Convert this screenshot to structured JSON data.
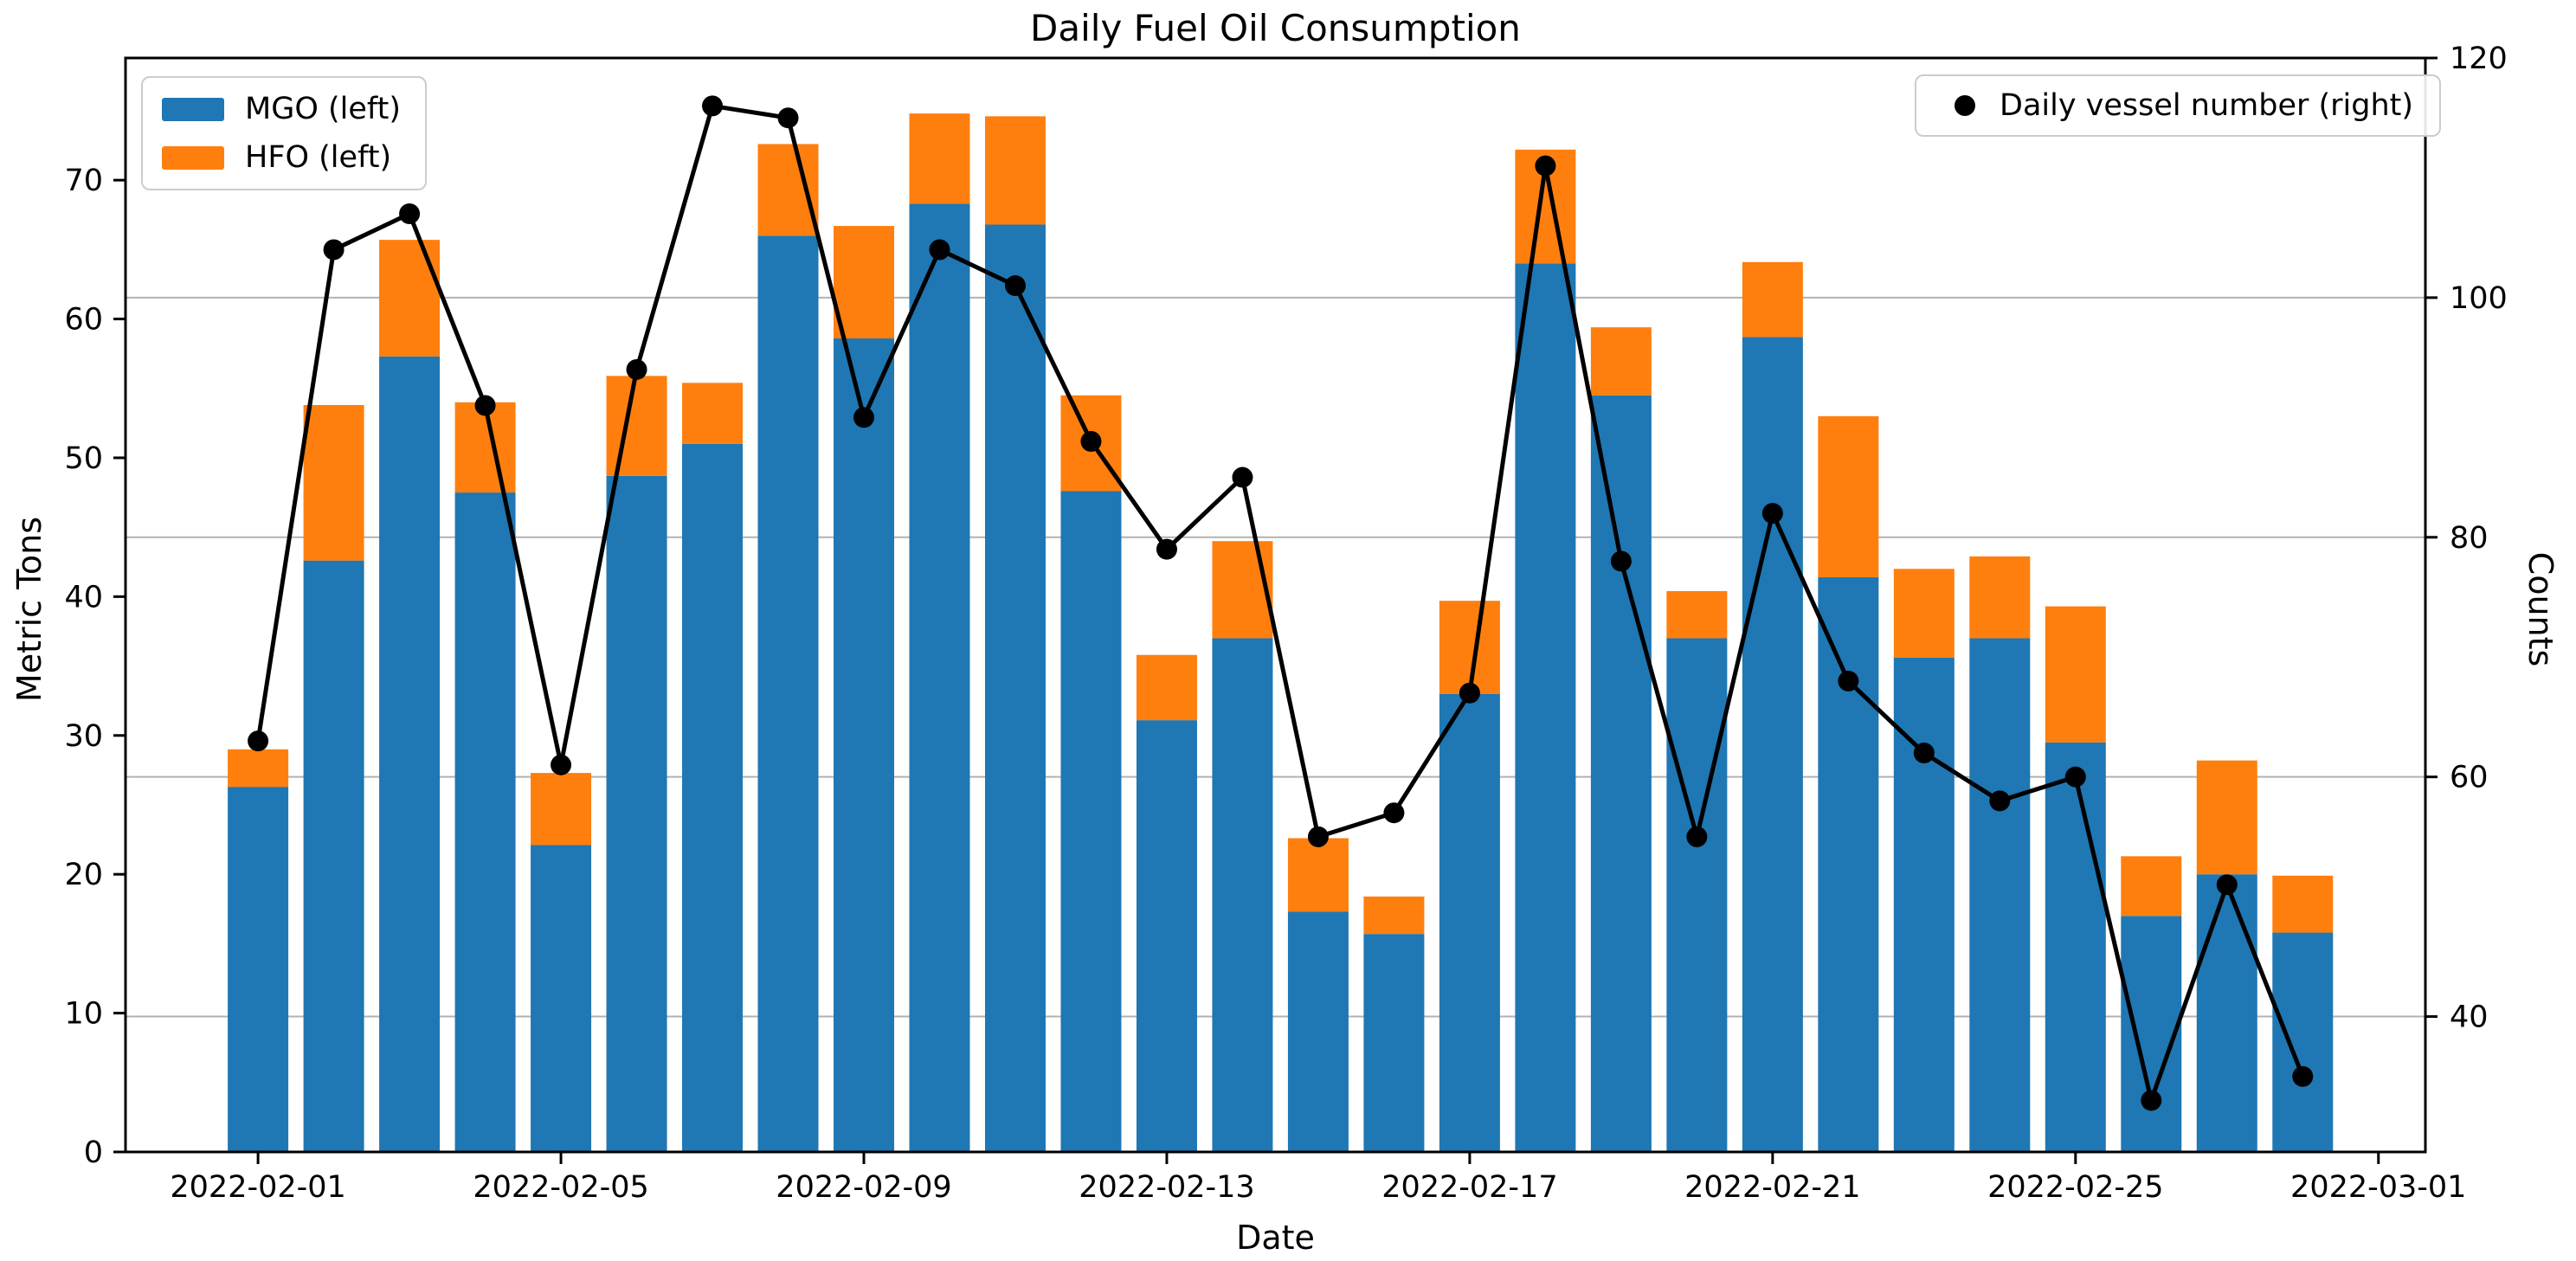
{
  "title": "Daily Fuel Oil Consumption",
  "legend_left": {
    "items": [
      {
        "label": "MGO (left)",
        "color": "#1f77b4"
      },
      {
        "label": "HFO (left)",
        "color": "#ff7f0e"
      }
    ]
  },
  "legend_right": {
    "items": [
      {
        "label": "Daily vessel number (right)",
        "marker": "circle",
        "color": "#000000"
      }
    ]
  },
  "colors": {
    "mgo": "#1f77b4",
    "hfo": "#ff7f0e",
    "vessel_line": "#000000",
    "grid": "#b2b2b2",
    "spine": "#000000"
  },
  "chart_data": {
    "type": "bar",
    "stacked": true,
    "title": "Daily Fuel Oil Consumption",
    "xlabel": "Date",
    "ylabel_left": "Metric Tons",
    "ylabel_right": "Counts",
    "grid": "horizontal",
    "legend_position": [
      "upper left",
      "upper right"
    ],
    "categories": [
      "2022-02-01",
      "2022-02-02",
      "2022-02-03",
      "2022-02-04",
      "2022-02-05",
      "2022-02-06",
      "2022-02-07",
      "2022-02-08",
      "2022-02-09",
      "2022-02-10",
      "2022-02-11",
      "2022-02-12",
      "2022-02-13",
      "2022-02-14",
      "2022-02-15",
      "2022-02-16",
      "2022-02-17",
      "2022-02-18",
      "2022-02-19",
      "2022-02-20",
      "2022-02-21",
      "2022-02-22",
      "2022-02-23",
      "2022-02-24",
      "2022-02-25",
      "2022-02-26",
      "2022-02-27",
      "2022-02-28"
    ],
    "series": [
      {
        "name": "MGO (left)",
        "type": "bar",
        "axis": "left",
        "color": "#1f77b4",
        "values": [
          26.3,
          42.6,
          57.3,
          47.5,
          22.1,
          48.7,
          51.0,
          66.0,
          58.6,
          68.3,
          66.8,
          47.6,
          31.1,
          37.0,
          17.3,
          15.7,
          33.0,
          64.0,
          54.5,
          37.0,
          58.7,
          41.4,
          35.6,
          37.0,
          29.5,
          17.0,
          20.0,
          15.8
        ]
      },
      {
        "name": "HFO (left)",
        "type": "bar",
        "axis": "left",
        "color": "#ff7f0e",
        "values": [
          2.7,
          11.2,
          8.4,
          6.5,
          5.2,
          7.2,
          4.4,
          6.6,
          8.1,
          6.5,
          7.8,
          6.9,
          4.7,
          7.0,
          5.3,
          2.7,
          6.7,
          8.2,
          4.9,
          3.4,
          5.4,
          11.6,
          6.4,
          5.9,
          9.8,
          4.3,
          8.2,
          4.1
        ]
      },
      {
        "name": "Daily vessel number (right)",
        "type": "line",
        "axis": "right",
        "color": "#000000",
        "marker": "circle",
        "values": [
          63,
          104,
          107,
          91,
          61,
          94,
          116,
          115,
          90,
          104,
          101,
          88,
          79,
          85,
          55,
          57,
          67,
          111,
          78,
          55,
          82,
          68,
          62,
          58,
          60,
          33,
          51,
          35
        ]
      }
    ],
    "x_tick_labels": [
      "2022-02-01",
      "2022-02-05",
      "2022-02-09",
      "2022-02-13",
      "2022-02-17",
      "2022-02-21",
      "2022-02-25",
      "2022-03-01"
    ],
    "x_tick_days": [
      0,
      4,
      8,
      12,
      16,
      20,
      24,
      28
    ],
    "y_left_ticks": [
      0,
      10,
      20,
      30,
      40,
      50,
      60,
      70
    ],
    "y_right_ticks": [
      40,
      60,
      80,
      100,
      120
    ],
    "ylim_left": [
      0,
      78.8
    ],
    "ylim_right": [
      28.7,
      120
    ],
    "xlim_days": [
      -1.75,
      28.62
    ]
  }
}
